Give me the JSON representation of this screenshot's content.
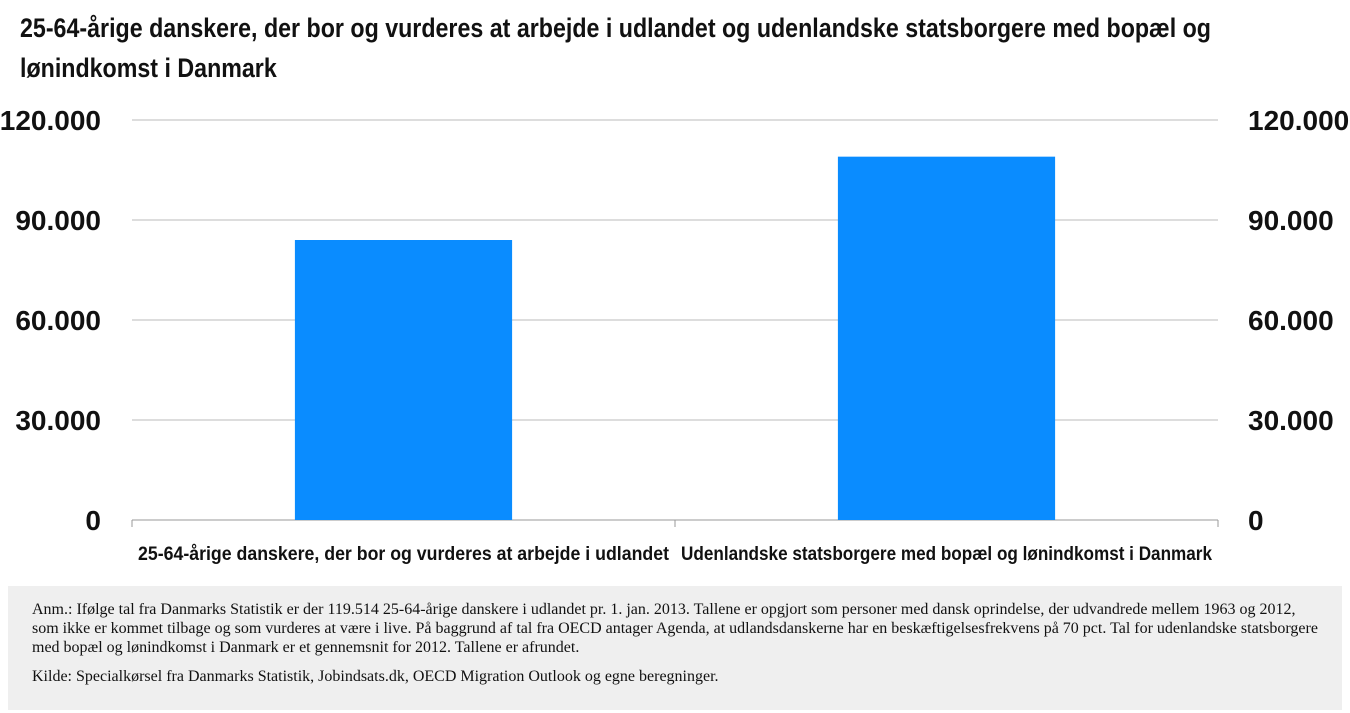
{
  "title": "25-64-årige danskere, der bor og vurderes at arbejde i udlandet og udenlandske statsborgere med bopæl og lønindkomst i Danmark",
  "chart_data": {
    "type": "bar",
    "categories": [
      "25-64-årige danskere, der bor og vurderes at arbejde i udlandet",
      "Udenlandske statsborgere med bopæl og lønindkomst i Danmark"
    ],
    "values": [
      84000,
      109000
    ],
    "ylim": [
      0,
      120000
    ],
    "yticks": [
      0,
      30000,
      60000,
      90000,
      120000
    ],
    "ytick_labels": [
      "0",
      "30.000",
      "60.000",
      "90.000",
      "120.000"
    ],
    "secondary_axis": true,
    "grid": true,
    "bar_color": "#0a8cff"
  },
  "note": {
    "text": "Anm.: Ifølge tal fra Danmarks Statistik er der 119.514 25-64-årige danskere i udlandet pr. 1. jan. 2013. Tallene er opgjort som personer med dansk oprindelse, der udvandrede mellem 1963 og 2012, som ikke er kommet tilbage og som vurderes at være i live. På baggrund af tal fra OECD antager Agenda, at udlandsdanskerne har en beskæftigelsesfrekvens på 70 pct. Tal for udenlandske statsborgere med bopæl og lønindkomst i Danmark er et gennemsnit for 2012. Tallene er afrundet.",
    "source": "Kilde: Specialkørsel fra Danmarks Statistik, Jobindsats.dk, OECD Migration Outlook og egne beregninger."
  }
}
